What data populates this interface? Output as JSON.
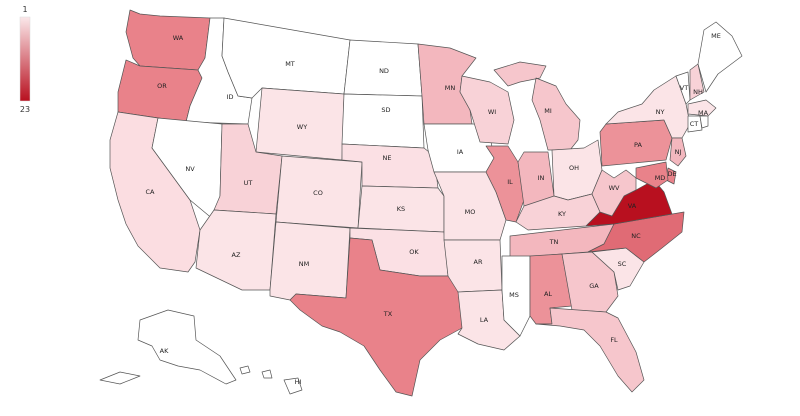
{
  "legend": {
    "min": "1",
    "max": "23",
    "colors": {
      "low": "#fbe8ea",
      "high": "#b8101f"
    }
  },
  "states": [
    {
      "code": "WA",
      "label": "WA",
      "color": "#e9828a"
    },
    {
      "code": "OR",
      "label": "OR",
      "color": "#e9828a"
    },
    {
      "code": "CA",
      "label": "CA",
      "color": "#fbdde1"
    },
    {
      "code": "ID",
      "label": "ID",
      "color": "#ffffff"
    },
    {
      "code": "NV",
      "label": "NV",
      "color": "#ffffff"
    },
    {
      "code": "MT",
      "label": "MT",
      "color": "#ffffff"
    },
    {
      "code": "WY",
      "label": "WY",
      "color": "#fbe4e7"
    },
    {
      "code": "UT",
      "label": "UT",
      "color": "#f8d2d7"
    },
    {
      "code": "AZ",
      "label": "AZ",
      "color": "#fbe4e7"
    },
    {
      "code": "CO",
      "label": "CO",
      "color": "#fbe4e7"
    },
    {
      "code": "NM",
      "label": "NM",
      "color": "#fbe4e7"
    },
    {
      "code": "ND",
      "label": "ND",
      "color": "#ffffff"
    },
    {
      "code": "SD",
      "label": "SD",
      "color": "#ffffff"
    },
    {
      "code": "NE",
      "label": "NE",
      "color": "#fbe0e4"
    },
    {
      "code": "KS",
      "label": "KS",
      "color": "#fbe4e7"
    },
    {
      "code": "OK",
      "label": "OK",
      "color": "#fbe0e4"
    },
    {
      "code": "TX",
      "label": "TX",
      "color": "#e9828a"
    },
    {
      "code": "MN",
      "label": "MN",
      "color": "#f3b7be"
    },
    {
      "code": "IA",
      "label": "IA",
      "color": "#ffffff"
    },
    {
      "code": "MO",
      "label": "MO",
      "color": "#fbe4e7"
    },
    {
      "code": "AR",
      "label": "AR",
      "color": "#fbe4e7"
    },
    {
      "code": "LA",
      "label": "LA",
      "color": "#fbe4e7"
    },
    {
      "code": "WI",
      "label": "WI",
      "color": "#f8d2d7"
    },
    {
      "code": "IL",
      "label": "IL",
      "color": "#ec9299"
    },
    {
      "code": "MI",
      "label": "MI",
      "color": "#f6c6cc"
    },
    {
      "code": "IN",
      "label": "IN",
      "color": "#f3b7be"
    },
    {
      "code": "OH",
      "label": "OH",
      "color": "#fbe4e7"
    },
    {
      "code": "KY",
      "label": "KY",
      "color": "#f8d2d7"
    },
    {
      "code": "TN",
      "label": "TN",
      "color": "#f3b7be"
    },
    {
      "code": "MS",
      "label": "MS",
      "color": "#ffffff"
    },
    {
      "code": "AL",
      "label": "AL",
      "color": "#ec9299"
    },
    {
      "code": "GA",
      "label": "GA",
      "color": "#f6c6cc"
    },
    {
      "code": "FL",
      "label": "FL",
      "color": "#f6c6cc"
    },
    {
      "code": "SC",
      "label": "SC",
      "color": "#fbe4e7"
    },
    {
      "code": "NC",
      "label": "NC",
      "color": "#e06b75"
    },
    {
      "code": "VA",
      "label": "VA",
      "color": "#b8101f"
    },
    {
      "code": "WV",
      "label": "WV",
      "color": "#f6c6cc"
    },
    {
      "code": "PA",
      "label": "PA",
      "color": "#ec9299"
    },
    {
      "code": "NY",
      "label": "NY",
      "color": "#fbe4e7"
    },
    {
      "code": "VT",
      "label": "VT",
      "color": "#ffffff"
    },
    {
      "code": "NH",
      "label": "NH",
      "color": "#f8d2d7"
    },
    {
      "code": "ME",
      "label": "ME",
      "color": "#ffffff"
    },
    {
      "code": "MA",
      "label": "MA",
      "color": "#fbe4e7"
    },
    {
      "code": "CT",
      "label": "CT",
      "color": "#ffffff"
    },
    {
      "code": "RI",
      "label": "",
      "color": "#ffffff"
    },
    {
      "code": "NJ",
      "label": "NJ",
      "color": "#f3b7be"
    },
    {
      "code": "DE",
      "label": "DE",
      "color": "#e9828a"
    },
    {
      "code": "MD",
      "label": "MD",
      "color": "#e9828a"
    },
    {
      "code": "AK",
      "label": "AK",
      "color": "#ffffff"
    },
    {
      "code": "HI",
      "label": "HI",
      "color": "#ffffff"
    }
  ]
}
